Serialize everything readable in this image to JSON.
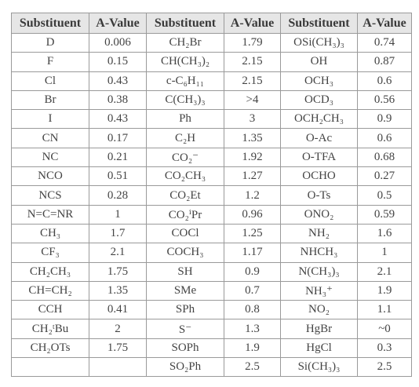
{
  "table": {
    "header": [
      "Substituent",
      "A-Value",
      "Substituent",
      "A-Value",
      "Substituent",
      "A-Value"
    ],
    "rows": [
      [
        "D",
        "0.006",
        "CH₂Br",
        "1.79",
        "OSi(CH₃)₃",
        "0.74"
      ],
      [
        "F",
        "0.15",
        "CH(CH₃)₂",
        "2.15",
        "OH",
        "0.87"
      ],
      [
        "Cl",
        "0.43",
        "c-C₆H₁₁",
        "2.15",
        "OCH₃",
        "0.6"
      ],
      [
        "Br",
        "0.38",
        "C(CH₃)₃",
        ">4",
        "OCD₃",
        "0.56"
      ],
      [
        "I",
        "0.43",
        "Ph",
        "3",
        "OCH₂CH₃",
        "0.9"
      ],
      [
        "CN",
        "0.17",
        "C₂H",
        "1.35",
        "O-Ac",
        "0.6"
      ],
      [
        "NC",
        "0.21",
        "CO₂⁻",
        "1.92",
        "O-TFA",
        "0.68"
      ],
      [
        "NCO",
        "0.51",
        "CO₂CH₃",
        "1.27",
        "OCHO",
        "0.27"
      ],
      [
        "NCS",
        "0.28",
        "CO₂Et",
        "1.2",
        "O-Ts",
        "0.5"
      ],
      [
        "N=C=NR",
        "1",
        "CO₂ⁱPr",
        "0.96",
        "ONO₂",
        "0.59"
      ],
      [
        "CH₃",
        "1.7",
        "COCl",
        "1.25",
        "NH₂",
        "1.6"
      ],
      [
        "CF₃",
        "2.1",
        "COCH₃",
        "1.17",
        "NHCH₃",
        "1"
      ],
      [
        "CH₂CH₃",
        "1.75",
        "SH",
        "0.9",
        "N(CH₃)₃",
        "2.1"
      ],
      [
        "CH=CH₂",
        "1.35",
        "SMe",
        "0.7",
        "NH₃⁺",
        "1.9"
      ],
      [
        "CCH",
        "0.41",
        "SPh",
        "0.8",
        "NO₂",
        "1.1"
      ],
      [
        "CH₂ᵗBu",
        "2",
        "S⁻",
        "1.3",
        "HgBr",
        "~0"
      ],
      [
        "CH₂OTs",
        "1.75",
        "SOPh",
        "1.9",
        "HgCl",
        "0.3"
      ],
      [
        null,
        null,
        "SO₂Ph",
        "2.5",
        "Si(CH₃)₃",
        "2.5"
      ]
    ]
  }
}
